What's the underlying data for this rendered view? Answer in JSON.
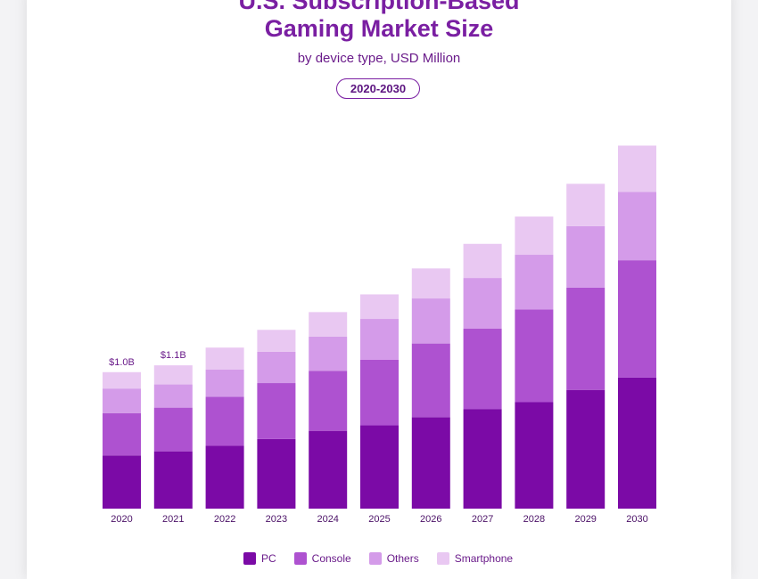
{
  "page": {
    "title_line1": "U.S. Subscription-Based",
    "title_line2": "Gaming Market Size",
    "subtitle": "by device type, USD Million",
    "badge": "2020-2030"
  },
  "chart_data": {
    "type": "bar",
    "stacked": true,
    "title": "U.S. Subscription-Based Gaming Market Size",
    "subtitle": "by device type, USD Million",
    "categories": [
      "2020",
      "2021",
      "2022",
      "2023",
      "2024",
      "2025",
      "2026",
      "2027",
      "2028",
      "2029",
      "2030"
    ],
    "series": [
      {
        "name": "PC",
        "color": "#7b0aa6",
        "values": [
          390,
          420,
          460,
          510,
          570,
          610,
          670,
          730,
          780,
          870,
          960
        ]
      },
      {
        "name": "Console",
        "color": "#ae52d0",
        "values": [
          310,
          320,
          360,
          410,
          440,
          480,
          540,
          590,
          680,
          750,
          860
        ]
      },
      {
        "name": "Others",
        "color": "#d49be9",
        "values": [
          180,
          170,
          200,
          230,
          250,
          300,
          330,
          370,
          400,
          450,
          500
        ]
      },
      {
        "name": "Smartphone",
        "color": "#e9c8f2",
        "values": [
          120,
          140,
          160,
          160,
          180,
          180,
          220,
          250,
          280,
          310,
          340
        ]
      }
    ],
    "data_labels": [
      {
        "category": "2020",
        "text": "$1.0B"
      },
      {
        "category": "2021",
        "text": "$1.1B"
      }
    ],
    "ylim": [
      0,
      2800
    ],
    "grid": false,
    "legend": "bottom"
  }
}
